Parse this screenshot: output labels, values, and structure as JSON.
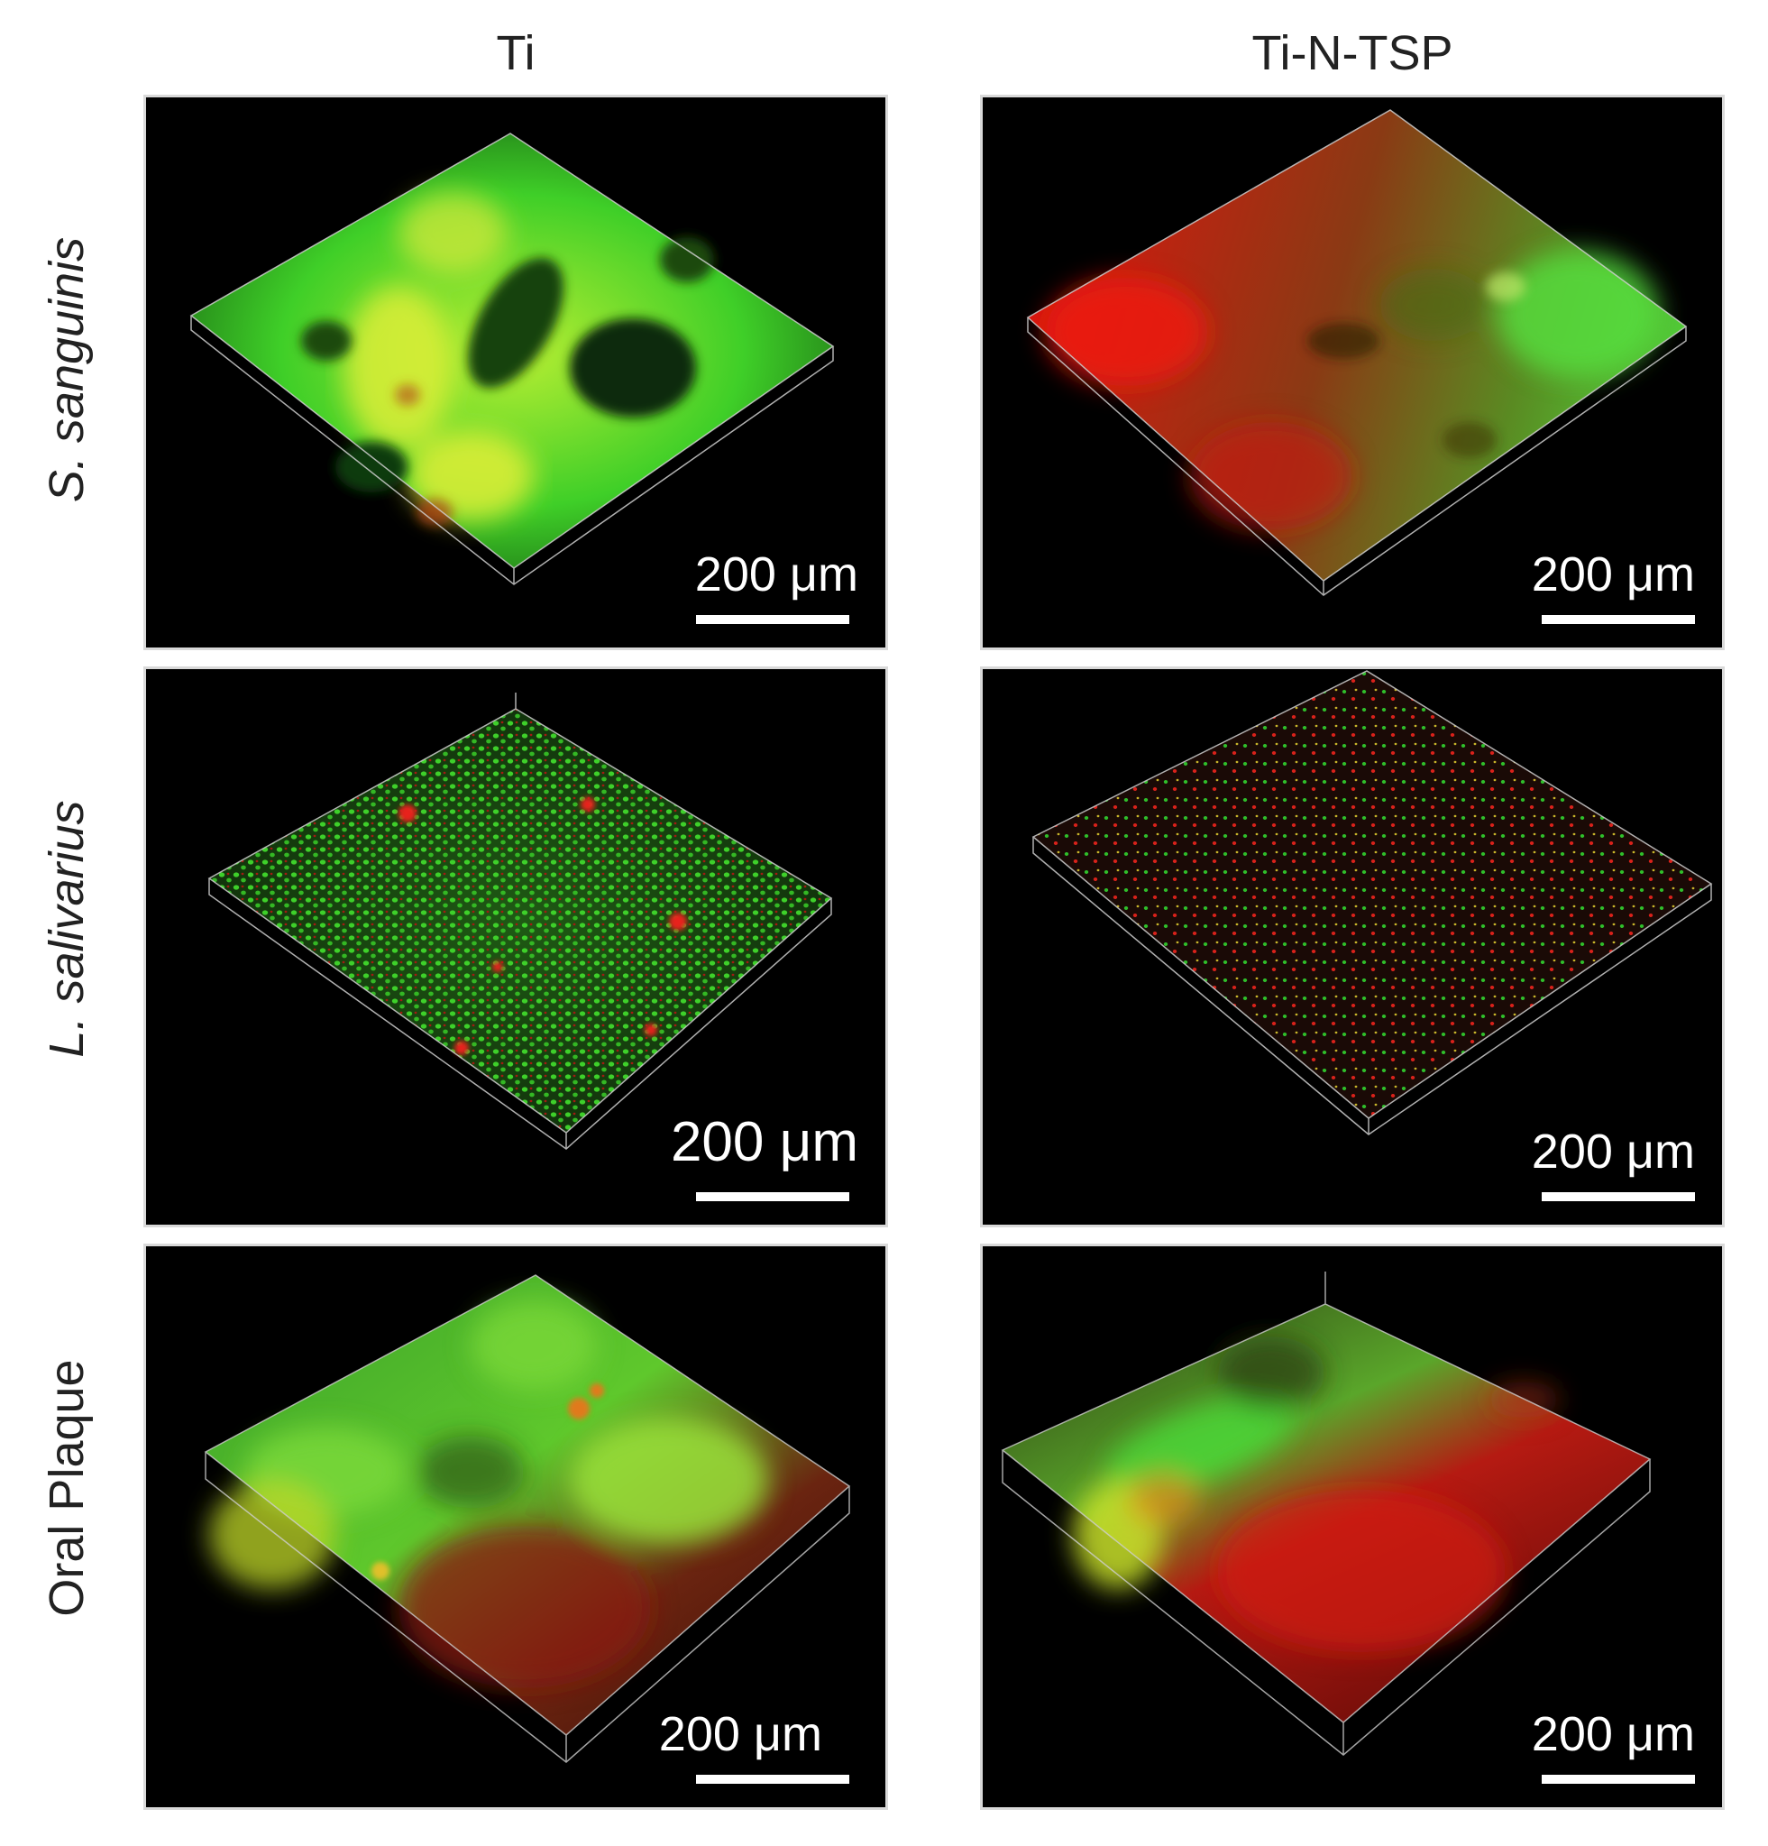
{
  "columns": [
    "Ti",
    "Ti-N-TSP"
  ],
  "rows": [
    "S. sanguinis",
    "L. salivarius",
    "Oral Plaque"
  ],
  "scale_bar_label": "200 μm",
  "colors": {
    "live_stain": "#39d22a",
    "dead_stain": "#e8201a",
    "background": "#000000",
    "frame": "#d9d9d9"
  }
}
